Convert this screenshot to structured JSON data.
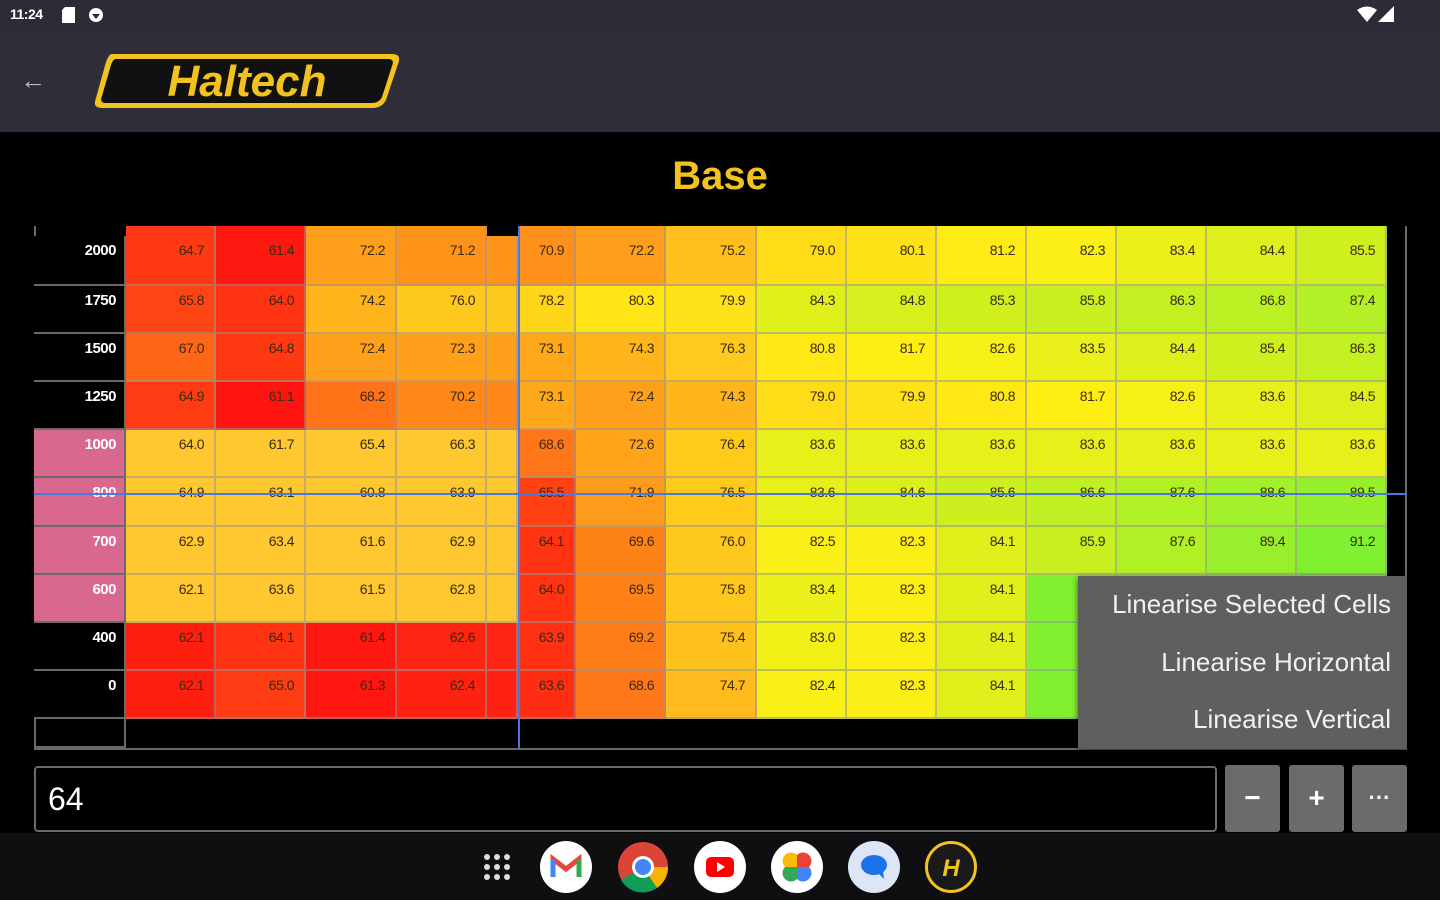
{
  "status_bar": {
    "time": "11:24",
    "left_icons": [
      "sd-card-icon",
      "shield-icon"
    ],
    "right_icons": [
      "wifi-icon",
      "signal-icon"
    ]
  },
  "app_bar": {
    "back_icon": "arrow-left-icon",
    "logo_text": "Haltech"
  },
  "page": {
    "title": "Base",
    "colors": {
      "title": "#f2c21f",
      "selected_header": "#d9688e",
      "crosshair": "#4a78e0",
      "low": "#ff1a10",
      "mid": "#ffc830",
      "high": "#80f030"
    }
  },
  "table": {
    "row_headers": [
      "2000",
      "1750",
      "1500",
      "1250",
      "1000",
      "800",
      "700",
      "600",
      "400",
      "0"
    ],
    "selected_rows": [
      "1000",
      "800",
      "700",
      "600"
    ],
    "rows": [
      [
        "64.7",
        "61.4",
        "72.2",
        "71.2",
        "70.9",
        "72.2",
        "75.2",
        "79.0",
        "80.1",
        "81.2",
        "82.3",
        "83.4",
        "84.4",
        "85.5"
      ],
      [
        "65.8",
        "64.0",
        "74.2",
        "76.0",
        "78.2",
        "80.3",
        "79.9",
        "84.3",
        "84.8",
        "85.3",
        "85.8",
        "86.3",
        "86.8",
        "87.4"
      ],
      [
        "67.0",
        "64.8",
        "72.4",
        "72.3",
        "73.1",
        "74.3",
        "76.3",
        "80.8",
        "81.7",
        "82.6",
        "83.5",
        "84.4",
        "85.4",
        "86.3"
      ],
      [
        "64.9",
        "61.1",
        "68.2",
        "70.2",
        "73.1",
        "72.4",
        "74.3",
        "79.0",
        "79.9",
        "80.8",
        "81.7",
        "82.6",
        "83.6",
        "84.5"
      ],
      [
        "64.0",
        "61.7",
        "65.4",
        "66.3",
        "68.6",
        "72.6",
        "76.4",
        "83.6",
        "83.6",
        "83.6",
        "83.6",
        "83.6",
        "83.6",
        "83.6"
      ],
      [
        "64.9",
        "63.1",
        "60.8",
        "63.9",
        "65.5",
        "71.9",
        "76.5",
        "83.6",
        "84.6",
        "85.6",
        "86.6",
        "87.6",
        "88.6",
        "89.5"
      ],
      [
        "62.9",
        "63.4",
        "61.6",
        "62.9",
        "64.1",
        "69.6",
        "76.0",
        "82.5",
        "82.3",
        "84.1",
        "85.9",
        "87.6",
        "89.4",
        "91.2"
      ],
      [
        "62.1",
        "63.6",
        "61.5",
        "62.8",
        "64.0",
        "69.5",
        "75.8",
        "83.4",
        "82.3",
        "84.1",
        "",
        "",
        "",
        ""
      ],
      [
        "62.1",
        "64.1",
        "61.4",
        "62.6",
        "63.9",
        "69.2",
        "75.4",
        "83.0",
        "82.3",
        "84.1",
        "",
        "",
        "",
        ""
      ],
      [
        "62.1",
        "65.0",
        "61.3",
        "62.4",
        "63.6",
        "68.6",
        "74.7",
        "82.4",
        "82.3",
        "84.1",
        "",
        "",
        "",
        ""
      ]
    ]
  },
  "context_menu": {
    "items": [
      "Linearise Selected Cells",
      "Linearise Horizontal",
      "Linearise Vertical"
    ]
  },
  "editor": {
    "value": "64",
    "decrement_label": "−",
    "increment_label": "+",
    "more_label": "···"
  },
  "dock": {
    "apps": [
      "app-drawer-icon",
      "gmail-icon",
      "chrome-icon",
      "youtube-icon",
      "photos-icon",
      "messages-icon",
      "haltech-app-icon"
    ]
  }
}
